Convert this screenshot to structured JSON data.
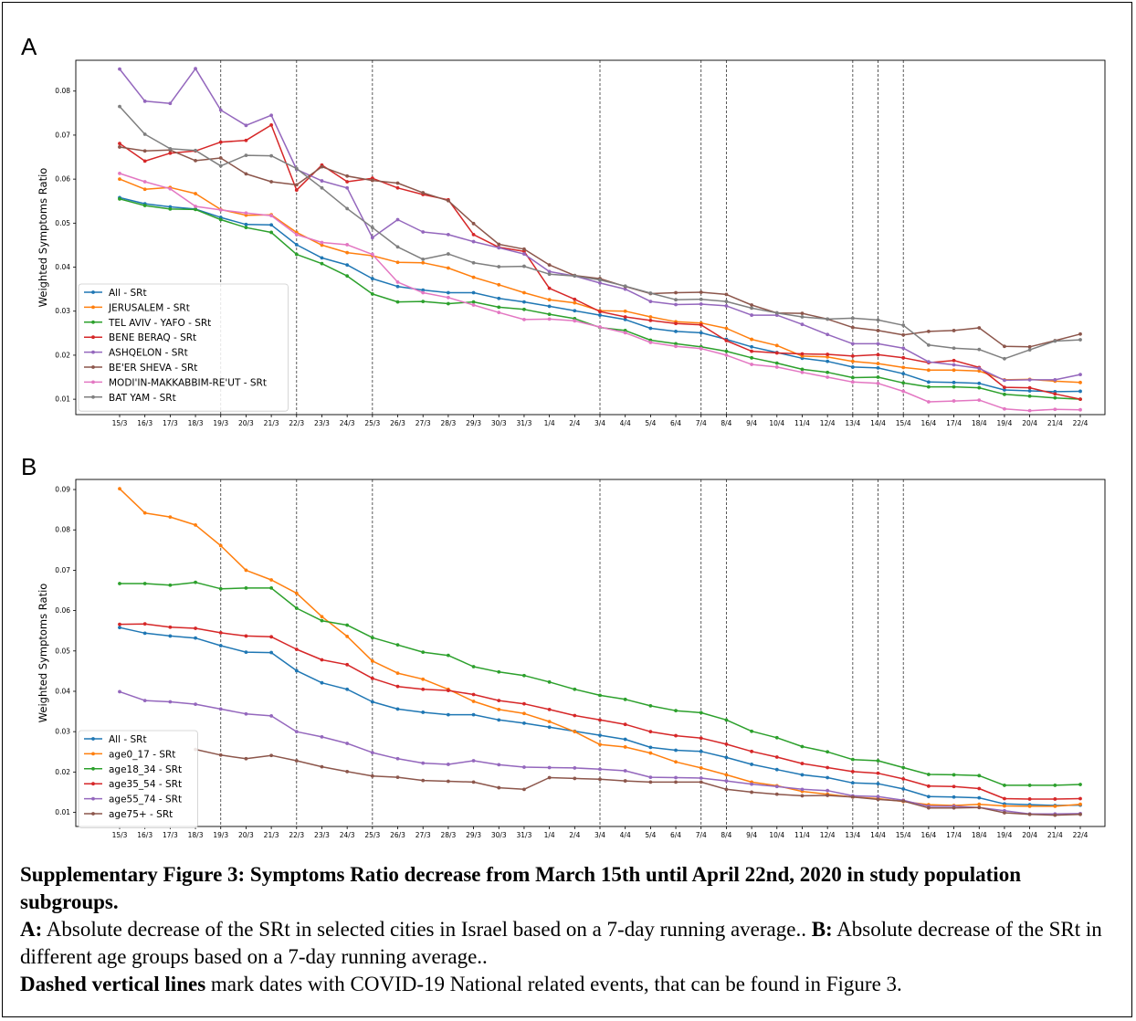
{
  "panel_a_label": "A",
  "panel_b_label": "B",
  "caption": {
    "title": "Supplementary Figure 3: Symptoms Ratio decrease from March 15th until April 22nd, 2020 in study population subgroups.",
    "a_label": "A:",
    "a_text": " Absolute decrease of the SRt in selected cities in Israel based on a 7-day running average.. ",
    "b_label": "B:",
    "b_text": " Absolute decrease of the SRt in different age groups based on a 7-day running average..",
    "dashed_label": "Dashed vertical lines",
    "dashed_text": " mark dates with COVID-19 National related events, that can be found in Figure 3."
  },
  "chart_data": [
    {
      "type": "line",
      "panel": "A",
      "ylabel": "Weighted Symptoms Ratio",
      "xlabel": "",
      "grid": false,
      "legend_position": "lower-left",
      "x": [
        "15/3",
        "16/3",
        "17/3",
        "18/3",
        "19/3",
        "20/3",
        "21/3",
        "22/3",
        "23/3",
        "24/3",
        "25/3",
        "26/3",
        "27/3",
        "28/3",
        "29/3",
        "30/3",
        "31/3",
        "1/4",
        "2/4",
        "3/4",
        "4/4",
        "5/4",
        "6/4",
        "7/4",
        "8/4",
        "9/4",
        "10/4",
        "11/4",
        "12/4",
        "13/4",
        "14/4",
        "15/4",
        "16/4",
        "17/4",
        "18/4",
        "19/4",
        "20/4",
        "21/4",
        "22/4"
      ],
      "yticks": [
        0.01,
        0.02,
        0.03,
        0.04,
        0.05,
        0.06,
        0.07,
        0.08
      ],
      "ylim": [
        0.0065,
        0.087
      ],
      "event_dates": [
        "19/3",
        "22/3",
        "25/3",
        "3/4",
        "7/4",
        "8/4",
        "13/4",
        "14/4",
        "15/4"
      ],
      "series": [
        {
          "name": "All - SRt",
          "color": "#1f77b4",
          "values": [
            0.0558,
            0.0544,
            0.0537,
            0.0532,
            0.0513,
            0.0497,
            0.0496,
            0.0451,
            0.0421,
            0.0405,
            0.0374,
            0.0356,
            0.0348,
            0.0342,
            0.0342,
            0.0329,
            0.0321,
            0.0311,
            0.0301,
            0.0291,
            0.0281,
            0.0261,
            0.0254,
            0.0251,
            0.0236,
            0.0219,
            0.0206,
            0.0193,
            0.0186,
            0.0173,
            0.0171,
            0.0158,
            0.0139,
            0.0138,
            0.0136,
            0.0121,
            0.0119,
            0.0117,
            0.0118
          ]
        },
        {
          "name": "JERUSALEM - SRt",
          "color": "#ff7f0e",
          "values": [
            0.06,
            0.0577,
            0.0581,
            0.0567,
            0.0531,
            0.0518,
            0.0519,
            0.0479,
            0.045,
            0.0433,
            0.0426,
            0.0411,
            0.041,
            0.0398,
            0.0377,
            0.036,
            0.0342,
            0.0326,
            0.0319,
            0.0301,
            0.03,
            0.0287,
            0.0276,
            0.0273,
            0.0261,
            0.0236,
            0.0222,
            0.0198,
            0.0196,
            0.0186,
            0.0181,
            0.0172,
            0.0166,
            0.0166,
            0.0164,
            0.0144,
            0.0145,
            0.0141,
            0.0138
          ]
        },
        {
          "name": "TEL AVIV - YAFO - SRt",
          "color": "#2ca02c",
          "values": [
            0.0555,
            0.054,
            0.0532,
            0.0531,
            0.0508,
            0.049,
            0.0479,
            0.0429,
            0.0408,
            0.038,
            0.0339,
            0.0321,
            0.0322,
            0.0317,
            0.0321,
            0.0309,
            0.0304,
            0.0293,
            0.0283,
            0.0263,
            0.0256,
            0.0234,
            0.0226,
            0.0219,
            0.0209,
            0.0194,
            0.0182,
            0.0168,
            0.0161,
            0.0149,
            0.015,
            0.0137,
            0.0128,
            0.0128,
            0.0126,
            0.0111,
            0.0107,
            0.0103,
            0.01
          ]
        },
        {
          "name": "BENE BERAQ - SRt",
          "color": "#d62728",
          "values": [
            0.0681,
            0.0641,
            0.0659,
            0.0664,
            0.0684,
            0.0688,
            0.0723,
            0.0575,
            0.0632,
            0.0594,
            0.0602,
            0.058,
            0.0565,
            0.0553,
            0.0474,
            0.0445,
            0.0436,
            0.0352,
            0.0327,
            0.0299,
            0.0287,
            0.0279,
            0.0272,
            0.0269,
            0.0233,
            0.0209,
            0.0205,
            0.0203,
            0.0202,
            0.0198,
            0.0201,
            0.0194,
            0.0183,
            0.0188,
            0.0172,
            0.0127,
            0.0126,
            0.0112,
            0.01
          ]
        },
        {
          "name": "ASHQELON - SRt",
          "color": "#9467bd",
          "values": [
            0.085,
            0.0777,
            0.0772,
            0.0851,
            0.0757,
            0.0722,
            0.0745,
            0.0622,
            0.0596,
            0.058,
            0.0467,
            0.0508,
            0.048,
            0.0474,
            0.0458,
            0.0444,
            0.043,
            0.039,
            0.038,
            0.0364,
            0.035,
            0.0322,
            0.0315,
            0.0316,
            0.0312,
            0.0291,
            0.0291,
            0.027,
            0.0247,
            0.0226,
            0.0226,
            0.0216,
            0.0185,
            0.0178,
            0.017,
            0.0143,
            0.0144,
            0.0144,
            0.0156
          ]
        },
        {
          "name": "BE'ER SHEVA - SRt",
          "color": "#8c564b",
          "values": [
            0.0673,
            0.0664,
            0.0666,
            0.0642,
            0.0648,
            0.0612,
            0.0594,
            0.0587,
            0.0628,
            0.0607,
            0.0597,
            0.0591,
            0.0569,
            0.0551,
            0.0499,
            0.0452,
            0.0441,
            0.0405,
            0.0381,
            0.0374,
            0.0356,
            0.034,
            0.0342,
            0.0343,
            0.0338,
            0.0314,
            0.0296,
            0.0295,
            0.0282,
            0.0263,
            0.0256,
            0.0246,
            0.0254,
            0.0256,
            0.0262,
            0.022,
            0.0219,
            0.0233,
            0.0248
          ]
        },
        {
          "name": "MODI'IN-MAKKABBIM-RE'UT - SRt",
          "color": "#e377c2",
          "values": [
            0.0613,
            0.0594,
            0.0578,
            0.0538,
            0.053,
            0.0523,
            0.0517,
            0.0474,
            0.0456,
            0.0451,
            0.0429,
            0.0366,
            0.0342,
            0.0331,
            0.0314,
            0.0297,
            0.0281,
            0.0282,
            0.0278,
            0.0264,
            0.0251,
            0.0229,
            0.022,
            0.0215,
            0.02,
            0.0179,
            0.0173,
            0.0161,
            0.015,
            0.0139,
            0.0136,
            0.0118,
            0.0094,
            0.0096,
            0.0098,
            0.0078,
            0.0074,
            0.0077,
            0.0076
          ]
        },
        {
          "name": "BAT YAM - SRt",
          "color": "#7f7f7f",
          "values": [
            0.0765,
            0.0702,
            0.0669,
            0.0665,
            0.063,
            0.0654,
            0.0653,
            0.0624,
            0.058,
            0.0533,
            0.049,
            0.0446,
            0.0418,
            0.043,
            0.041,
            0.0401,
            0.0402,
            0.0384,
            0.038,
            0.0371,
            0.0357,
            0.0341,
            0.0326,
            0.0327,
            0.0322,
            0.0307,
            0.0296,
            0.0287,
            0.0282,
            0.0284,
            0.028,
            0.0268,
            0.0223,
            0.0216,
            0.0213,
            0.0192,
            0.0212,
            0.0232,
            0.0235
          ]
        }
      ]
    },
    {
      "type": "line",
      "panel": "B",
      "ylabel": "Weighted Symptoms Ratio",
      "xlabel": "",
      "grid": false,
      "legend_position": "lower-left",
      "x": [
        "15/3",
        "16/3",
        "17/3",
        "18/3",
        "19/3",
        "20/3",
        "21/3",
        "22/3",
        "23/3",
        "24/3",
        "25/3",
        "26/3",
        "27/3",
        "28/3",
        "29/3",
        "30/3",
        "31/3",
        "1/4",
        "2/4",
        "3/4",
        "4/4",
        "5/4",
        "6/4",
        "7/4",
        "8/4",
        "9/4",
        "10/4",
        "11/4",
        "12/4",
        "13/4",
        "14/4",
        "15/4",
        "16/4",
        "17/4",
        "18/4",
        "19/4",
        "20/4",
        "21/4",
        "22/4"
      ],
      "yticks": [
        0.01,
        0.02,
        0.03,
        0.04,
        0.05,
        0.06,
        0.07,
        0.08,
        0.09
      ],
      "ylim": [
        0.0065,
        0.0925
      ],
      "event_dates": [
        "19/3",
        "22/3",
        "25/3",
        "3/4",
        "7/4",
        "8/4",
        "13/4",
        "14/4",
        "15/4"
      ],
      "series": [
        {
          "name": "All - SRt",
          "color": "#1f77b4",
          "values": [
            0.0558,
            0.0544,
            0.0537,
            0.0532,
            0.0513,
            0.0497,
            0.0496,
            0.0451,
            0.0421,
            0.0405,
            0.0374,
            0.0356,
            0.0348,
            0.0342,
            0.0342,
            0.0329,
            0.0321,
            0.0311,
            0.0301,
            0.0291,
            0.0281,
            0.0261,
            0.0254,
            0.0251,
            0.0236,
            0.0219,
            0.0206,
            0.0193,
            0.0186,
            0.0173,
            0.0171,
            0.0158,
            0.0139,
            0.0138,
            0.0136,
            0.0121,
            0.0119,
            0.0117,
            0.0118
          ]
        },
        {
          "name": "age0_17 - SRt",
          "color": "#ff7f0e",
          "values": [
            0.0902,
            0.0842,
            0.0832,
            0.0812,
            0.0761,
            0.07,
            0.0676,
            0.0643,
            0.0585,
            0.0536,
            0.0475,
            0.0445,
            0.043,
            0.0405,
            0.0375,
            0.0355,
            0.0345,
            0.0325,
            0.03,
            0.0268,
            0.0262,
            0.0247,
            0.0225,
            0.021,
            0.0193,
            0.0175,
            0.0166,
            0.0152,
            0.0145,
            0.0138,
            0.0134,
            0.0127,
            0.0119,
            0.0117,
            0.012,
            0.0116,
            0.0115,
            0.0115,
            0.012
          ]
        },
        {
          "name": "age18_34 - SRt",
          "color": "#2ca02c",
          "values": [
            0.0667,
            0.0667,
            0.0663,
            0.067,
            0.0654,
            0.0656,
            0.0656,
            0.0606,
            0.0575,
            0.0564,
            0.0533,
            0.0515,
            0.0497,
            0.0489,
            0.0461,
            0.0448,
            0.0439,
            0.0423,
            0.0405,
            0.039,
            0.038,
            0.0364,
            0.0352,
            0.0347,
            0.0329,
            0.0301,
            0.0285,
            0.0263,
            0.025,
            0.0231,
            0.0228,
            0.0211,
            0.0194,
            0.0193,
            0.0191,
            0.0167,
            0.0167,
            0.0167,
            0.0169
          ]
        },
        {
          "name": "age35_54 - SRt",
          "color": "#d62728",
          "values": [
            0.0566,
            0.0567,
            0.0559,
            0.0556,
            0.0545,
            0.0537,
            0.0535,
            0.0504,
            0.0478,
            0.0466,
            0.0432,
            0.0412,
            0.0405,
            0.0402,
            0.0392,
            0.0377,
            0.0369,
            0.0355,
            0.034,
            0.0329,
            0.0318,
            0.03,
            0.029,
            0.0284,
            0.0269,
            0.0251,
            0.0237,
            0.0221,
            0.0211,
            0.0201,
            0.0197,
            0.0183,
            0.0165,
            0.0164,
            0.0159,
            0.0134,
            0.0133,
            0.0133,
            0.0134
          ]
        },
        {
          "name": "age55_74 - SRt",
          "color": "#9467bd",
          "values": [
            0.0399,
            0.0377,
            0.0374,
            0.0368,
            0.0356,
            0.0344,
            0.0339,
            0.03,
            0.0287,
            0.0271,
            0.0248,
            0.0233,
            0.0222,
            0.0219,
            0.0228,
            0.0218,
            0.0212,
            0.0211,
            0.021,
            0.0207,
            0.0203,
            0.0187,
            0.0186,
            0.0185,
            0.0178,
            0.017,
            0.0164,
            0.0157,
            0.0154,
            0.0141,
            0.0139,
            0.013,
            0.0115,
            0.0115,
            0.0112,
            0.0104,
            0.0096,
            0.0096,
            0.0097
          ]
        },
        {
          "name": "age75+ - SRt",
          "color": "#8c564b",
          "values": [
            null,
            null,
            null,
            0.0256,
            0.0242,
            0.0233,
            0.0241,
            0.0228,
            0.0213,
            0.0201,
            0.019,
            0.0187,
            0.0179,
            0.0177,
            0.0175,
            0.0161,
            0.0157,
            0.0186,
            0.0184,
            0.0182,
            0.0178,
            0.0175,
            0.0175,
            0.0175,
            0.0157,
            0.015,
            0.0145,
            0.0141,
            0.0142,
            0.0138,
            0.0132,
            0.0128,
            0.0111,
            0.0111,
            0.0112,
            0.0099,
            0.0095,
            0.0093,
            0.0095
          ]
        }
      ]
    }
  ]
}
